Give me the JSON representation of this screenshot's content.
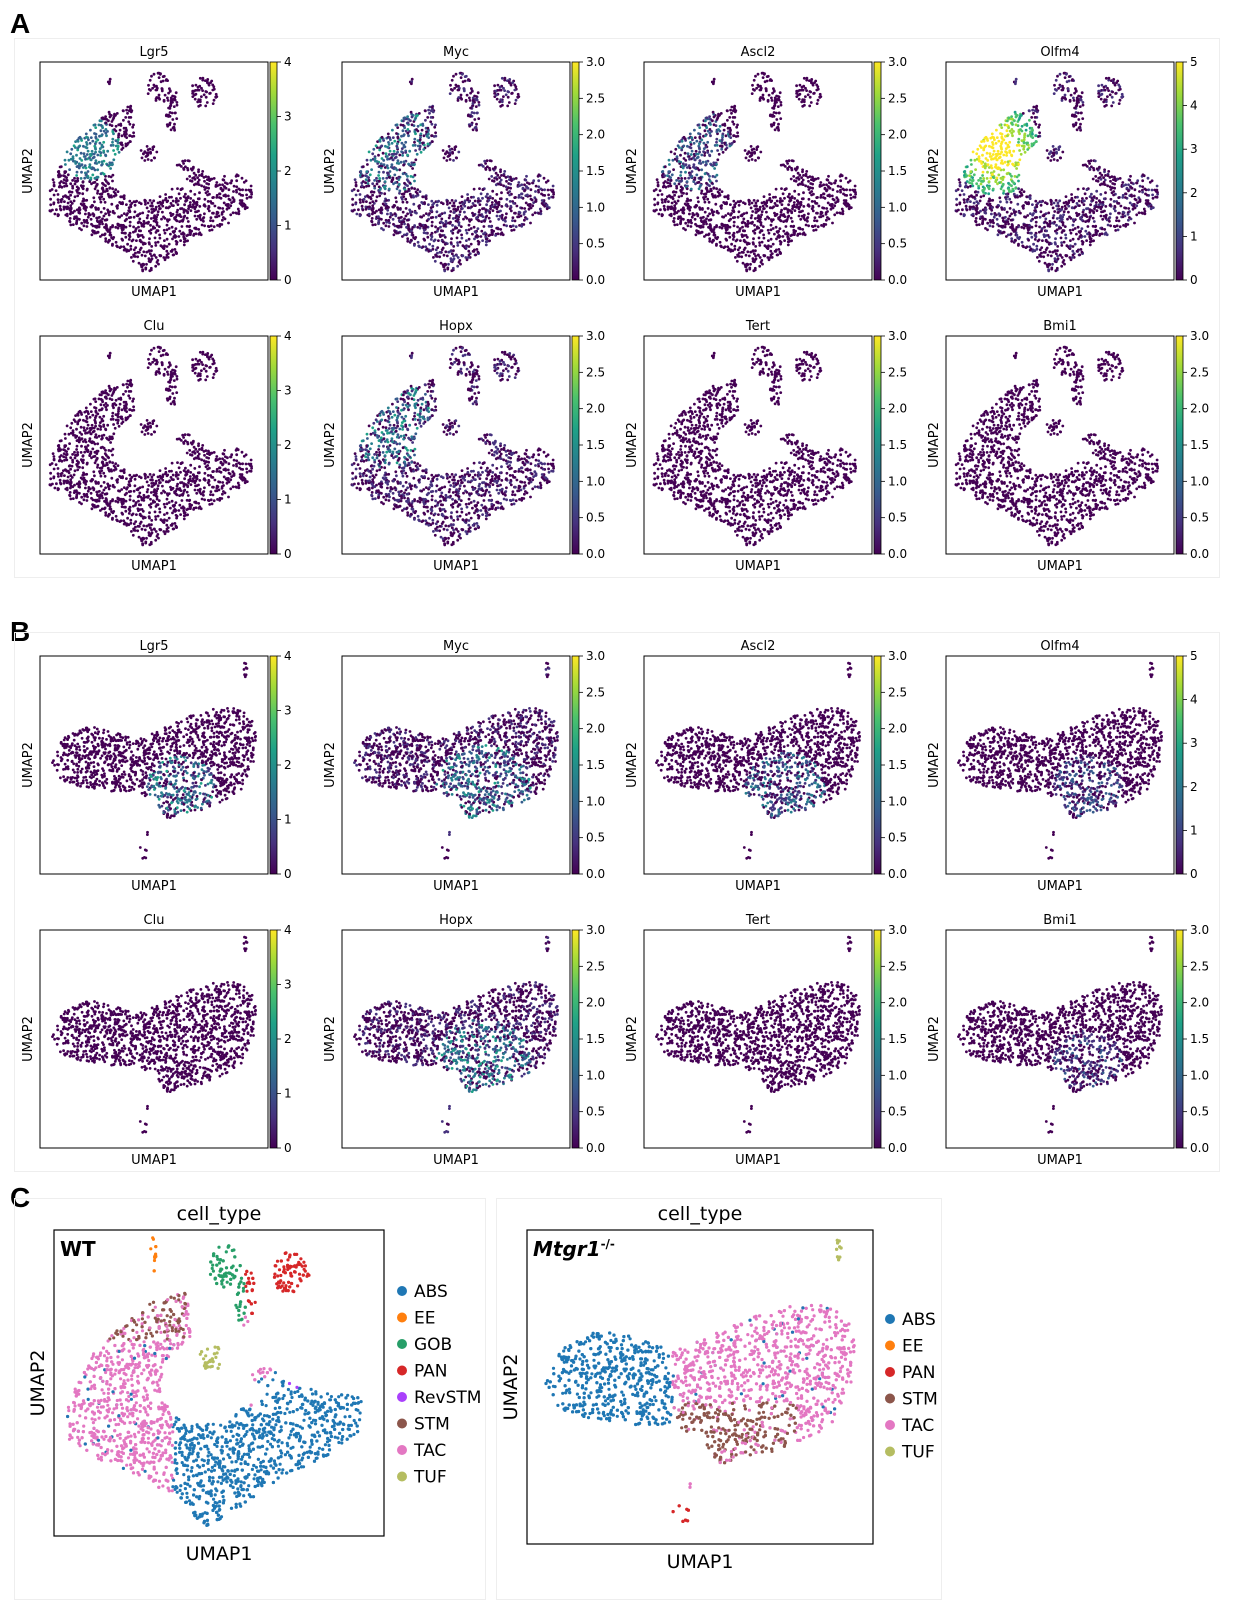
{
  "panels": {
    "A": {
      "letter": "A",
      "chart_data": {
        "type": "scatter",
        "plots": [
          {
            "gene": "Lgr5",
            "ticks": [
              "0",
              "1",
              "2",
              "3",
              "4"
            ]
          },
          {
            "gene": "Myc",
            "ticks": [
              "0.0",
              "0.5",
              "1.0",
              "1.5",
              "2.0",
              "2.5",
              "3.0"
            ]
          },
          {
            "gene": "Ascl2",
            "ticks": [
              "0.0",
              "0.5",
              "1.0",
              "1.5",
              "2.0",
              "2.5",
              "3.0"
            ]
          },
          {
            "gene": "Olfm4",
            "ticks": [
              "0",
              "1",
              "2",
              "3",
              "4",
              "5"
            ]
          },
          {
            "gene": "Clu",
            "ticks": [
              "0",
              "1",
              "2",
              "3",
              "4"
            ]
          },
          {
            "gene": "Hopx",
            "ticks": [
              "0.0",
              "0.5",
              "1.0",
              "1.5",
              "2.0",
              "2.5",
              "3.0"
            ]
          },
          {
            "gene": "Tert",
            "ticks": [
              "0.0",
              "0.5",
              "1.0",
              "1.5",
              "2.0",
              "2.5",
              "3.0"
            ]
          },
          {
            "gene": "Bmi1",
            "ticks": [
              "0.0",
              "0.5",
              "1.0",
              "1.5",
              "2.0",
              "2.5",
              "3.0"
            ]
          }
        ],
        "xlabel": "UMAP1",
        "ylabel": "UMAP2",
        "colormap": "viridis"
      }
    },
    "B": {
      "letter": "B",
      "chart_data": {
        "type": "scatter",
        "plots": [
          {
            "gene": "Lgr5",
            "ticks": [
              "0",
              "1",
              "2",
              "3",
              "4"
            ]
          },
          {
            "gene": "Myc",
            "ticks": [
              "0.0",
              "0.5",
              "1.0",
              "1.5",
              "2.0",
              "2.5",
              "3.0"
            ]
          },
          {
            "gene": "Ascl2",
            "ticks": [
              "0.0",
              "0.5",
              "1.0",
              "1.5",
              "2.0",
              "2.5",
              "3.0"
            ]
          },
          {
            "gene": "Olfm4",
            "ticks": [
              "0",
              "1",
              "2",
              "3",
              "4",
              "5"
            ]
          },
          {
            "gene": "Clu",
            "ticks": [
              "0",
              "1",
              "2",
              "3",
              "4"
            ]
          },
          {
            "gene": "Hopx",
            "ticks": [
              "0.0",
              "0.5",
              "1.0",
              "1.5",
              "2.0",
              "2.5",
              "3.0"
            ]
          },
          {
            "gene": "Tert",
            "ticks": [
              "0.0",
              "0.5",
              "1.0",
              "1.5",
              "2.0",
              "2.5",
              "3.0"
            ]
          },
          {
            "gene": "Bmi1",
            "ticks": [
              "0.0",
              "0.5",
              "1.0",
              "1.5",
              "2.0",
              "2.5",
              "3.0"
            ]
          }
        ],
        "xlabel": "UMAP1",
        "ylabel": "UMAP2",
        "colormap": "viridis"
      }
    },
    "C": {
      "letter": "C",
      "chart_data": [
        {
          "type": "scatter",
          "title": "cell_type",
          "label": "WT",
          "xlabel": "UMAP1",
          "ylabel": "UMAP2",
          "legend": [
            {
              "name": "ABS",
              "color": "#1f77b4"
            },
            {
              "name": "EE",
              "color": "#ff7f0e"
            },
            {
              "name": "GOB",
              "color": "#279e68"
            },
            {
              "name": "PAN",
              "color": "#d62728"
            },
            {
              "name": "RevSTM",
              "color": "#aa40fc"
            },
            {
              "name": "STM",
              "color": "#8c564b"
            },
            {
              "name": "TAC",
              "color": "#e377c2"
            },
            {
              "name": "TUF",
              "color": "#b5bd61"
            }
          ]
        },
        {
          "type": "scatter",
          "title": "cell_type",
          "label": "Mtgr1",
          "label_superscript": "-/-",
          "xlabel": "UMAP1",
          "ylabel": "UMAP2",
          "legend": [
            {
              "name": "ABS",
              "color": "#1f77b4"
            },
            {
              "name": "EE",
              "color": "#ff7f0e"
            },
            {
              "name": "PAN",
              "color": "#d62728"
            },
            {
              "name": "STM",
              "color": "#8c564b"
            },
            {
              "name": "TAC",
              "color": "#e377c2"
            },
            {
              "name": "TUF",
              "color": "#b5bd61"
            }
          ]
        }
      ]
    }
  }
}
